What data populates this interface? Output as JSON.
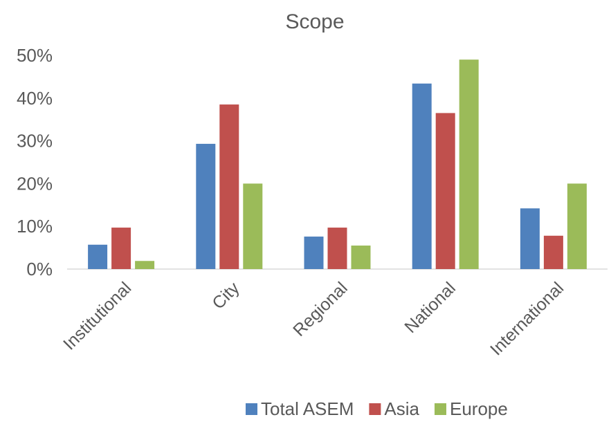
{
  "chart_data": {
    "type": "bar",
    "title": "Scope",
    "xlabel": "",
    "ylabel": "",
    "categories": [
      "Institutional",
      "City",
      "Regional",
      "National",
      "International"
    ],
    "series": [
      {
        "name": "Total ASEM",
        "color": "#4F81BD",
        "values": [
          5.7,
          29.3,
          7.6,
          43.4,
          14.2
        ]
      },
      {
        "name": "Asia",
        "color": "#C0504D",
        "values": [
          9.7,
          38.5,
          9.7,
          36.5,
          7.8
        ]
      },
      {
        "name": "Europe",
        "color": "#9BBB59",
        "values": [
          1.9,
          20.0,
          5.5,
          49.0,
          20.0
        ]
      }
    ],
    "ylim": [
      0,
      50
    ],
    "yticks": [
      "0%",
      "10%",
      "20%",
      "30%",
      "40%",
      "50%"
    ],
    "grid": false,
    "legend": "bottom"
  }
}
